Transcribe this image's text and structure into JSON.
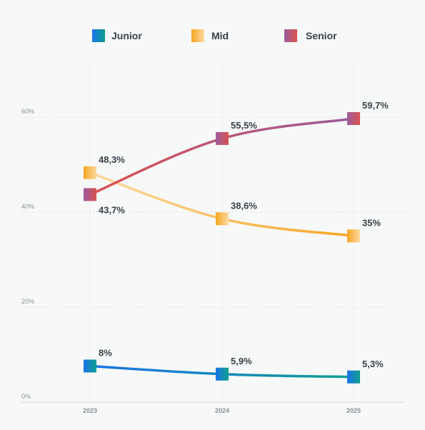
{
  "chart_data": {
    "type": "line",
    "x": [
      "2023",
      "2024",
      "2025"
    ],
    "series": [
      {
        "name": "Junior",
        "values": [
          7.6,
          5.9,
          5.3
        ],
        "labels": [
          "8%",
          "5,9%",
          "5,3%"
        ],
        "color_start": "#1a73e8",
        "color_end": "#0e9f8e"
      },
      {
        "name": "Mid",
        "values": [
          48.3,
          38.6,
          35.0
        ],
        "labels": [
          "48,3%",
          "38,6%",
          "35%"
        ],
        "color_start": "#f5a623",
        "color_end": "#fdd9a0"
      },
      {
        "name": "Senior",
        "values": [
          43.7,
          55.5,
          59.7
        ],
        "labels": [
          "43,7%",
          "55,5%",
          "59,7%"
        ],
        "color_start": "#d9534f",
        "color_end": "#9b5c9e"
      }
    ],
    "yticks": [
      0,
      20,
      40,
      60
    ],
    "ytick_labels": [
      "0%",
      "20%",
      "40%",
      "60%"
    ],
    "ylim": [
      0,
      70
    ],
    "grid": true,
    "legend_position": "top"
  }
}
